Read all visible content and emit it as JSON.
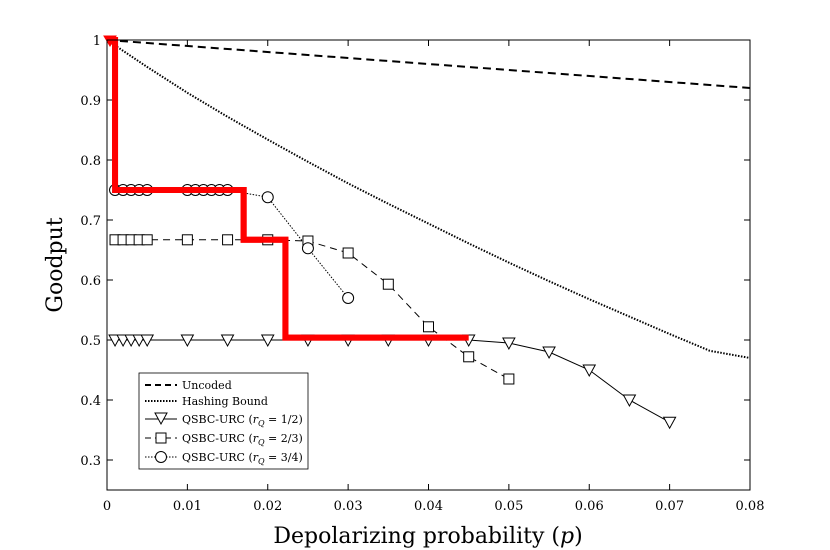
{
  "chart_data": {
    "type": "line",
    "title": "",
    "xlabel": "Depolarizing probability (p)",
    "xlabel_main": "Depolarizing probability ",
    "xlabel_paren_open": "(",
    "xlabel_var": "p",
    "xlabel_paren_close": ")",
    "ylabel": "Goodput",
    "xlim": [
      0,
      0.08
    ],
    "ylim": [
      0.25,
      1
    ],
    "xticks": [
      0,
      0.01,
      0.02,
      0.03,
      0.04,
      0.05,
      0.06,
      0.07,
      0.08
    ],
    "xtick_labels": [
      "0",
      "0.01",
      "0.02",
      "0.03",
      "0.04",
      "0.05",
      "0.06",
      "0.07",
      "0.08"
    ],
    "yticks": [
      0.3,
      0.4,
      0.5,
      0.6,
      0.7,
      0.8,
      0.9,
      1
    ],
    "ytick_labels": [
      "0.3",
      "0.4",
      "0.5",
      "0.6",
      "0.7",
      "0.8",
      "0.9",
      "1"
    ],
    "legend_position": "bottom-left",
    "series": [
      {
        "name": "Uncoded",
        "style": "dashed",
        "color": "#000000",
        "x": [
          0,
          0.08
        ],
        "y": [
          1.0,
          0.92
        ]
      },
      {
        "name": "Hashing Bound",
        "style": "dotted",
        "color": "#000000",
        "x": [
          0,
          0.005,
          0.01,
          0.015,
          0.02,
          0.025,
          0.03,
          0.035,
          0.04,
          0.045,
          0.05,
          0.055,
          0.06,
          0.065,
          0.07,
          0.075,
          0.08
        ],
        "y": [
          1.0,
          0.955,
          0.912,
          0.872,
          0.834,
          0.797,
          0.761,
          0.727,
          0.694,
          0.661,
          0.629,
          0.598,
          0.568,
          0.539,
          0.51,
          0.482,
          0.47
        ]
      },
      {
        "name": "QSBC-URC (rQ = 1/2)",
        "legend_prefix": "QSBC-URC (",
        "legend_var": "r",
        "legend_sub": "Q",
        "legend_suffix": " = 1/2)",
        "style": "solid",
        "marker": "triangle-down",
        "color": "#000000",
        "x": [
          0.001,
          0.002,
          0.003,
          0.004,
          0.005,
          0.01,
          0.015,
          0.02,
          0.025,
          0.03,
          0.035,
          0.04,
          0.045,
          0.05,
          0.055,
          0.06,
          0.065,
          0.07
        ],
        "y": [
          0.5,
          0.5,
          0.5,
          0.5,
          0.5,
          0.5,
          0.5,
          0.5,
          0.5,
          0.5,
          0.5,
          0.5,
          0.5,
          0.495,
          0.48,
          0.45,
          0.4,
          0.363
        ]
      },
      {
        "name": "QSBC-URC (rQ = 2/3)",
        "legend_prefix": "QSBC-URC (",
        "legend_var": "r",
        "legend_sub": "Q",
        "legend_suffix": " = 2/3)",
        "style": "dashed",
        "marker": "square",
        "color": "#000000",
        "x": [
          0.001,
          0.002,
          0.003,
          0.004,
          0.005,
          0.01,
          0.015,
          0.02,
          0.025,
          0.03,
          0.035,
          0.04,
          0.045,
          0.05
        ],
        "y": [
          0.667,
          0.667,
          0.667,
          0.667,
          0.667,
          0.667,
          0.667,
          0.667,
          0.665,
          0.645,
          0.593,
          0.522,
          0.472,
          0.435
        ]
      },
      {
        "name": "QSBC-URC (rQ = 3/4)",
        "legend_prefix": "QSBC-URC (",
        "legend_var": "r",
        "legend_sub": "Q",
        "legend_suffix": " = 3/4)",
        "style": "dotted",
        "marker": "circle",
        "color": "#000000",
        "x": [
          0.001,
          0.002,
          0.003,
          0.004,
          0.005,
          0.01,
          0.011,
          0.012,
          0.013,
          0.014,
          0.015,
          0.02,
          0.025,
          0.03
        ],
        "y": [
          0.75,
          0.75,
          0.75,
          0.75,
          0.75,
          0.75,
          0.75,
          0.75,
          0.75,
          0.75,
          0.75,
          0.738,
          0.653,
          0.57
        ]
      },
      {
        "name": "Best-rate envelope",
        "style": "thick-solid",
        "color": "#ff0000",
        "in_legend": false,
        "x": [
          0,
          0.001,
          0.001,
          0.017,
          0.017,
          0.0222,
          0.0222,
          0.045
        ],
        "y": [
          1.0,
          1.0,
          0.75,
          0.75,
          0.667,
          0.667,
          0.504,
          0.504
        ]
      }
    ]
  }
}
